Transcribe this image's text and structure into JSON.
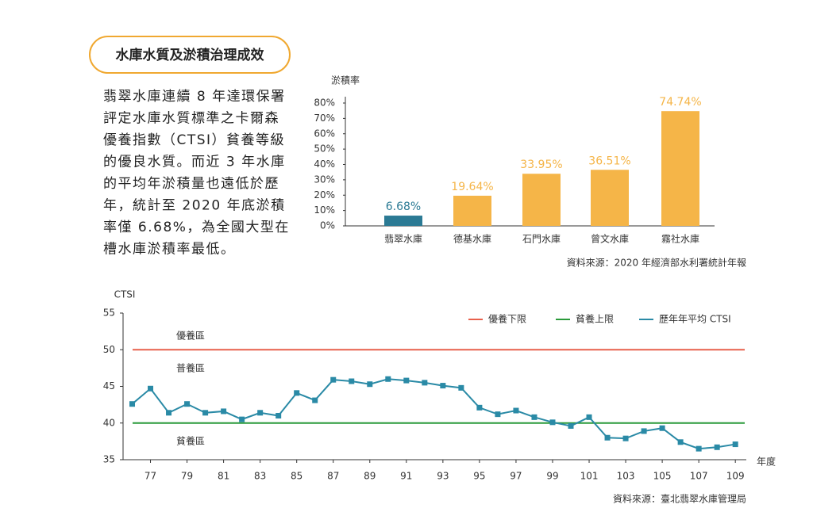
{
  "header": {
    "title": "水庫水質及淤積治理成效"
  },
  "intro": {
    "lines": [
      "翡翠水庫連續 8 年達環保署",
      "評定水庫水質標準之卡爾森",
      "優養指數（CTSI）貧養等級",
      "的優良水質。而近 3 年水庫",
      "的平均年淤積量也遠低於歷",
      "年，統計至 2020 年底淤積",
      "率僅 6.68%，為全國大型在",
      "槽水庫淤積率最低。"
    ]
  },
  "chart_data": [
    {
      "type": "bar",
      "y_label": "淤積率",
      "categories": [
        "翡翠水庫",
        "德基水庫",
        "石門水庫",
        "曾文水庫",
        "霧社水庫"
      ],
      "values": [
        6.68,
        19.64,
        33.95,
        36.51,
        74.74
      ],
      "value_labels": [
        "6.68%",
        "19.64%",
        "33.95%",
        "36.51%",
        "74.74%"
      ],
      "colors": [
        "#2b7a94",
        "#f5b548",
        "#f5b548",
        "#f5b548",
        "#f5b548"
      ],
      "ylim": [
        0,
        80
      ],
      "yticks": [
        {
          "value": 0,
          "label": "0%"
        },
        {
          "value": 10,
          "label": "10%"
        },
        {
          "value": 20,
          "label": "20%"
        },
        {
          "value": 30,
          "label": "30%"
        },
        {
          "value": 40,
          "label": "40%"
        },
        {
          "value": 50,
          "label": "50%"
        },
        {
          "value": 60,
          "label": "60%"
        },
        {
          "value": 70,
          "label": "70%"
        },
        {
          "value": 80,
          "label": "80%"
        }
      ],
      "source": "資料來源：2020 年經濟部水利署統計年報"
    },
    {
      "type": "line",
      "y_label": "CTSI",
      "x_label": "年度",
      "x": [
        76,
        77,
        78,
        79,
        80,
        81,
        82,
        83,
        84,
        85,
        86,
        87,
        88,
        89,
        90,
        91,
        92,
        93,
        94,
        95,
        96,
        97,
        98,
        99,
        100,
        101,
        102,
        103,
        104,
        105,
        106,
        107,
        108,
        109
      ],
      "series": [
        {
          "name": "歷年年平均 CTSI",
          "color": "#2a8aa6",
          "values": [
            42.6,
            44.7,
            41.4,
            42.6,
            41.4,
            41.6,
            40.5,
            41.4,
            41.0,
            44.1,
            43.1,
            45.9,
            45.7,
            45.3,
            46.0,
            45.8,
            45.5,
            45.1,
            44.8,
            42.1,
            41.2,
            41.7,
            40.8,
            40.1,
            39.6,
            40.8,
            38.0,
            37.9,
            38.9,
            39.3,
            37.4,
            36.5,
            36.7,
            37.1
          ]
        }
      ],
      "reference_lines": [
        {
          "name": "優養下限",
          "value": 50,
          "color": "#e8604c"
        },
        {
          "name": "貧養上限",
          "value": 40,
          "color": "#2a9a3a"
        }
      ],
      "zones": [
        "優養區",
        "普養區",
        "貧養區"
      ],
      "xlim": [
        75.5,
        109.6
      ],
      "xticks": [
        77,
        79,
        81,
        83,
        85,
        87,
        89,
        91,
        93,
        95,
        97,
        99,
        101,
        103,
        105,
        107,
        109
      ],
      "ylim": [
        35,
        55
      ],
      "yticks": [
        35,
        40,
        45,
        50,
        55
      ],
      "source": "資料來源：臺北翡翠水庫管理局"
    }
  ]
}
